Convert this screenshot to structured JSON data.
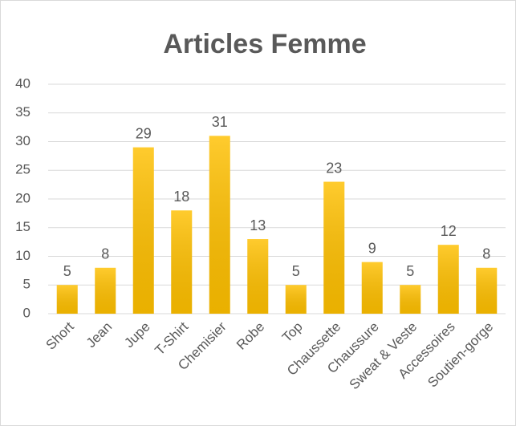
{
  "chart_data": {
    "type": "bar",
    "title": "Articles Femme",
    "categories": [
      "Short",
      "Jean",
      "Jupe",
      "T-Shirt",
      "Chemisier",
      "Robe",
      "Top",
      "Chaussette",
      "Chaussure",
      "Sweat & Veste",
      "Accessoires",
      "Soutien-gorge"
    ],
    "values": [
      5,
      8,
      29,
      18,
      31,
      13,
      5,
      23,
      9,
      5,
      12,
      8
    ],
    "color": "#ffc000",
    "ylim": [
      0,
      40
    ],
    "yticks": [
      0,
      5,
      10,
      15,
      20,
      25,
      30,
      35,
      40
    ],
    "grid": true
  }
}
